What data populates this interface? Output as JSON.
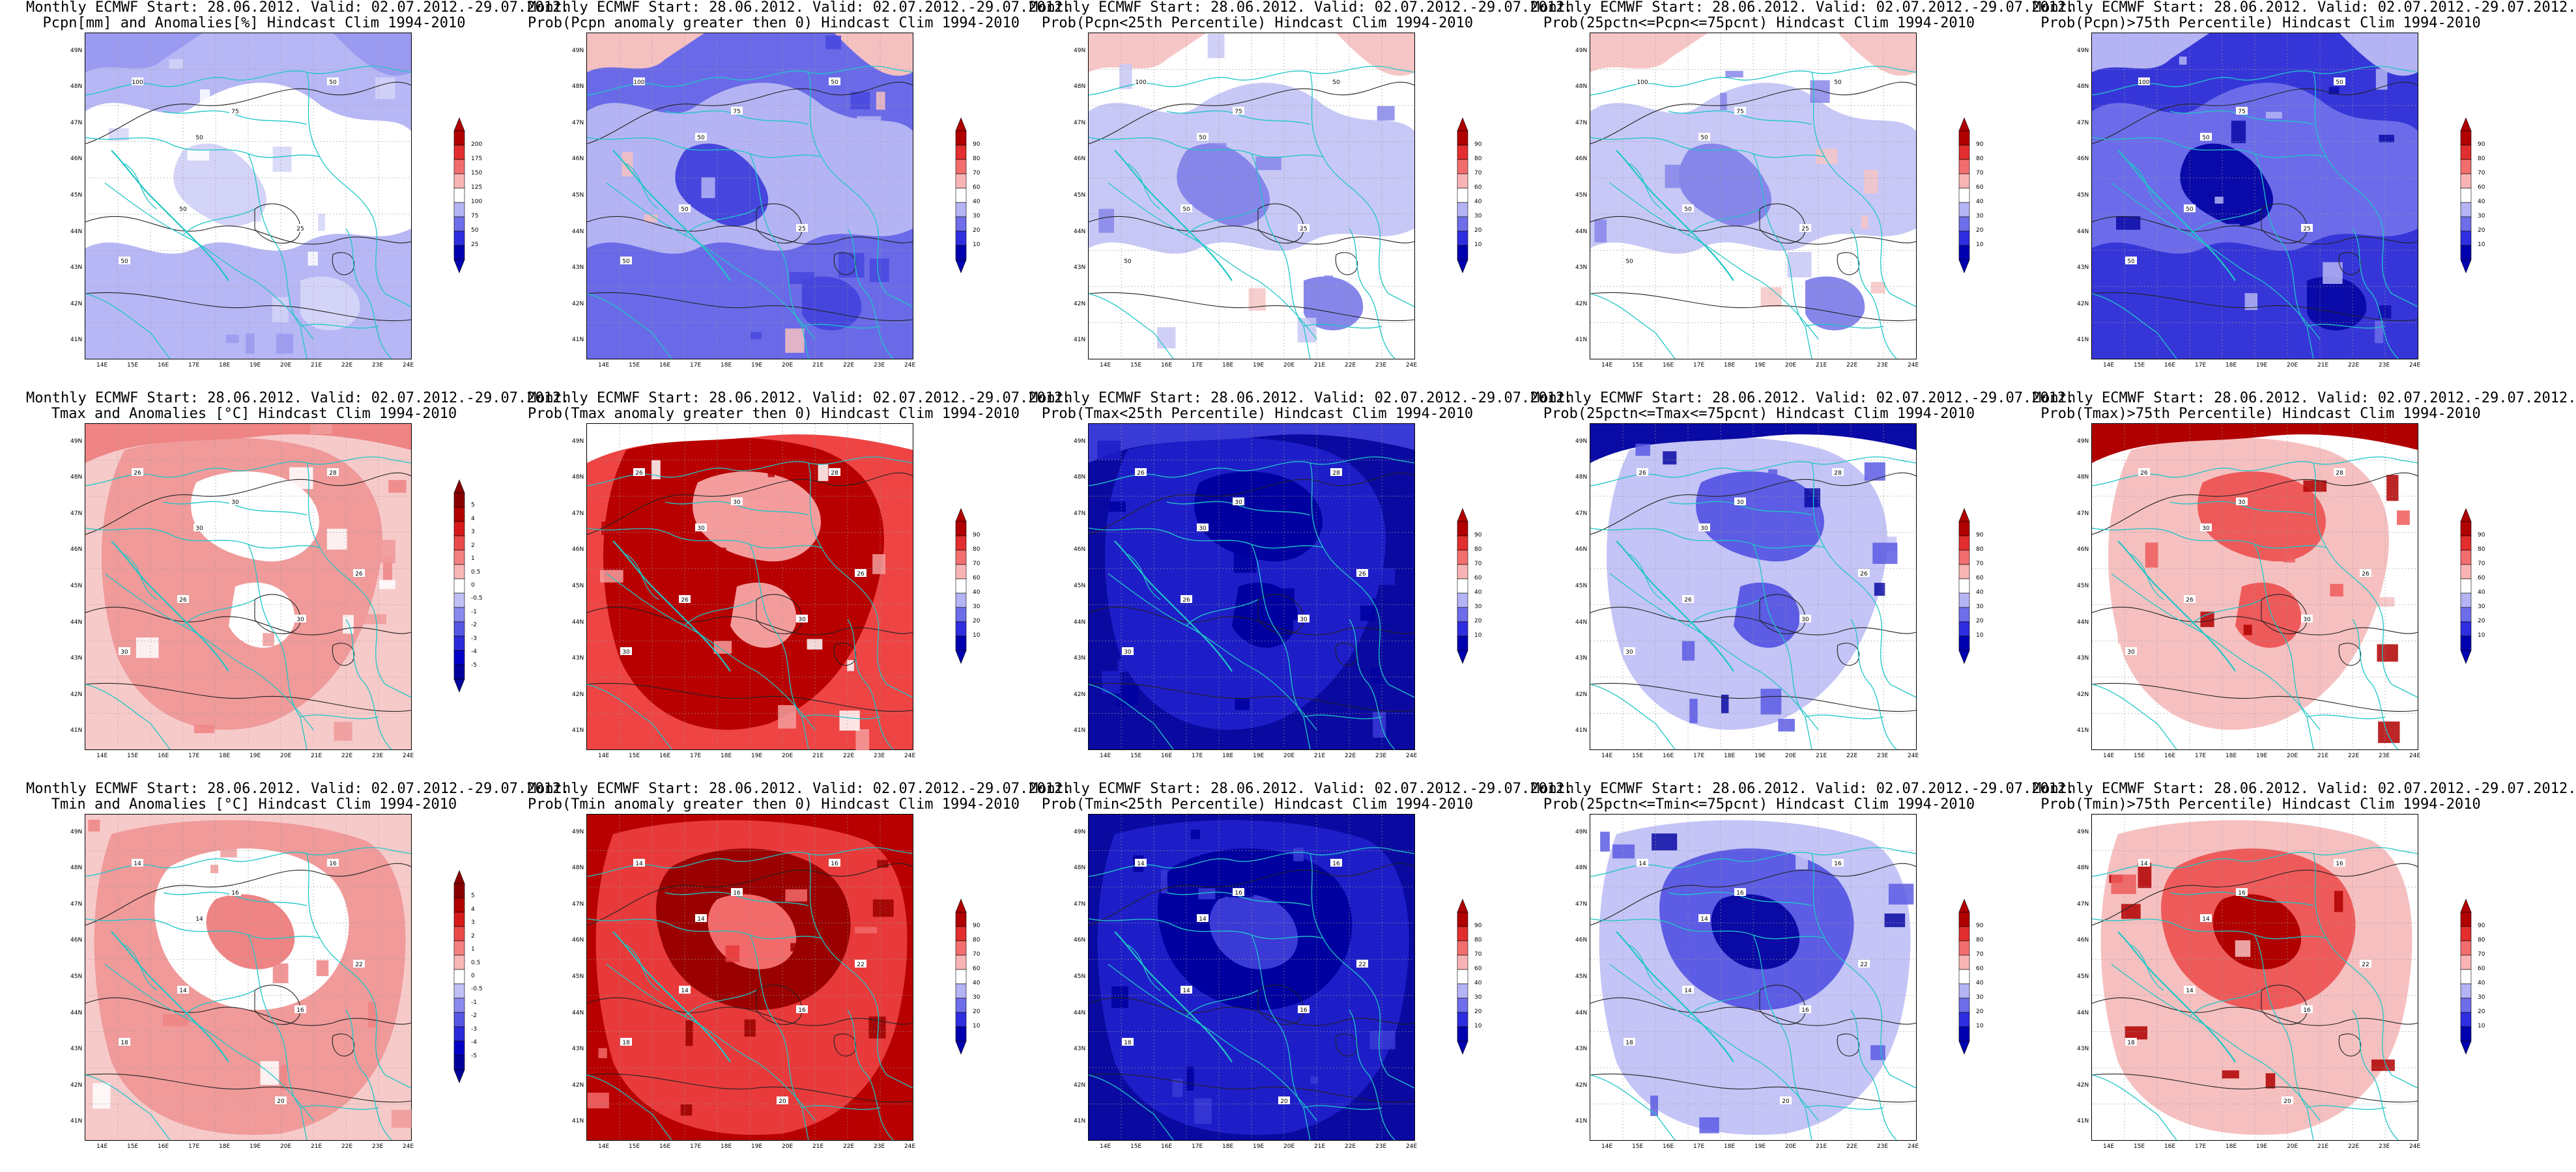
{
  "chart_data": [
    {
      "type": "heatmap",
      "row": 0,
      "col": 0,
      "variable": "pcpn",
      "palette": "pcpn",
      "title": [
        "Monthly ECMWF Start: 28.06.2012. Valid: 02.07.2012.-29.07.2012.",
        "Pcpn[mm] and Anomalies[%] Hindcast Clim 1994-2010"
      ],
      "colorbar_ticks": [
        "200",
        "175",
        "150",
        "125",
        "100",
        "75",
        "50",
        "25"
      ],
      "contour_labels": [
        "100",
        "50",
        "75",
        "50",
        "25",
        "50",
        "50"
      ]
    },
    {
      "type": "heatmap",
      "row": 0,
      "col": 1,
      "variable": "pcpn",
      "palette": "blue",
      "title": [
        "Monthly ECMWF Start: 28.06.2012. Valid: 02.07.2012.-29.07.2012.",
        "Prob(Pcpn anomaly greater then 0) Hindcast Clim 1994-2010"
      ],
      "colorbar_ticks": [
        "90",
        "80",
        "70",
        "60",
        "40",
        "30",
        "20",
        "10"
      ],
      "contour_labels": [
        "100",
        "50",
        "75",
        "50",
        "25",
        "50",
        "50"
      ]
    },
    {
      "type": "heatmap",
      "row": 0,
      "col": 2,
      "variable": "pcpn",
      "palette": "pale",
      "title": [
        "Monthly ECMWF Start: 28.06.2012. Valid: 02.07.2012.-29.07.2012.",
        "Prob(Pcpn<25th Percentile) Hindcast Clim 1994-2010"
      ],
      "colorbar_ticks": [
        "90",
        "80",
        "70",
        "60",
        "40",
        "30",
        "20",
        "10"
      ],
      "contour_labels": [
        "100",
        "50",
        "75",
        "50",
        "25",
        "50",
        "50"
      ]
    },
    {
      "type": "heatmap",
      "row": 0,
      "col": 3,
      "variable": "pcpn",
      "palette": "pale",
      "title": [
        "Monthly ECMWF Start: 28.06.2012. Valid: 02.07.2012.-29.07.2012.",
        "Prob(25pctn<=Pcpn<=75pcnt) Hindcast Clim 1994-2010"
      ],
      "colorbar_ticks": [
        "90",
        "80",
        "70",
        "60",
        "40",
        "30",
        "20",
        "10"
      ],
      "contour_labels": [
        "100",
        "50",
        "75",
        "50",
        "25",
        "50",
        "50"
      ]
    },
    {
      "type": "heatmap",
      "row": 0,
      "col": 4,
      "variable": "pcpn",
      "palette": "deepblue",
      "title": [
        "Monthly ECMWF Start: 28.06.2012. Valid: 02.07.2012.-29.07.2012.",
        "Prob(Pcpn)>75th Percentile) Hindcast Clim 1994-2010"
      ],
      "colorbar_ticks": [
        "90",
        "80",
        "70",
        "60",
        "40",
        "30",
        "20",
        "10"
      ],
      "contour_labels": [
        "100",
        "50",
        "75",
        "50",
        "25",
        "50",
        "50"
      ]
    },
    {
      "type": "heatmap",
      "row": 1,
      "col": 0,
      "variable": "tmax",
      "palette": "tanom",
      "title": [
        "Monthly ECMWF Start: 28.06.2012. Valid: 02.07.2012.-29.07.2012.",
        "Tmax and Anomalies [°C] Hindcast Clim 1994-2010"
      ],
      "colorbar_ticks": [
        "5",
        "4",
        "3",
        "2",
        "1",
        "0.5",
        "0",
        "-0.5",
        "-1",
        "-2",
        "-3",
        "-4",
        "-5"
      ],
      "contour_labels": [
        "26",
        "30",
        "30",
        "28",
        "30",
        "26",
        "30",
        "26"
      ]
    },
    {
      "type": "heatmap",
      "row": 1,
      "col": 1,
      "variable": "tmax",
      "palette": "redmax",
      "title": [
        "Monthly ECMWF Start: 28.06.2012. Valid: 02.07.2012.-29.07.2012.",
        "Prob(Tmax anomaly greater then 0) Hindcast Clim 1994-2010"
      ],
      "colorbar_ticks": [
        "90",
        "80",
        "70",
        "60",
        "40",
        "30",
        "20",
        "10"
      ],
      "contour_labels": [
        "26",
        "30",
        "30",
        "28",
        "30",
        "26",
        "30",
        "26"
      ]
    },
    {
      "type": "heatmap",
      "row": 1,
      "col": 2,
      "variable": "tmax",
      "palette": "navy",
      "title": [
        "Monthly ECMWF Start: 28.06.2012. Valid: 02.07.2012.-29.07.2012.",
        "Prob(Tmax<25th Percentile) Hindcast Clim 1994-2010"
      ],
      "colorbar_ticks": [
        "90",
        "80",
        "70",
        "60",
        "40",
        "30",
        "20",
        "10"
      ],
      "contour_labels": [
        "26",
        "30",
        "30",
        "28",
        "30",
        "26",
        "30",
        "26"
      ]
    },
    {
      "type": "heatmap",
      "row": 1,
      "col": 3,
      "variable": "tmax",
      "palette": "blueblob",
      "title": [
        "Monthly ECMWF Start: 28.06.2012. Valid: 02.07.2012.-29.07.2012.",
        "Prob(25pctn<=Tmax<=75pcnt) Hindcast Clim 1994-2010"
      ],
      "colorbar_ticks": [
        "90",
        "80",
        "70",
        "60",
        "40",
        "30",
        "20",
        "10"
      ],
      "contour_labels": [
        "26",
        "30",
        "30",
        "28",
        "30",
        "26",
        "30",
        "26"
      ]
    },
    {
      "type": "heatmap",
      "row": 1,
      "col": 4,
      "variable": "tmax",
      "palette": "redblob",
      "title": [
        "Monthly ECMWF Start: 28.06.2012. Valid: 02.07.2012.-29.07.2012.",
        "Prob(Tmax)>75th Percentile) Hindcast Clim 1994-2010"
      ],
      "colorbar_ticks": [
        "90",
        "80",
        "70",
        "60",
        "40",
        "30",
        "20",
        "10"
      ],
      "contour_labels": [
        "26",
        "30",
        "30",
        "28",
        "30",
        "26",
        "30",
        "26"
      ]
    },
    {
      "type": "heatmap",
      "row": 2,
      "col": 0,
      "variable": "tmin",
      "palette": "tanom",
      "title": [
        "Monthly ECMWF Start: 28.06.2012. Valid: 02.07.2012.-29.07.2012.",
        "Tmin and Anomalies [°C] Hindcast Clim 1994-2010"
      ],
      "colorbar_ticks": [
        "5",
        "4",
        "3",
        "2",
        "1",
        "0.5",
        "0",
        "-0.5",
        "-1",
        "-2",
        "-3",
        "-4",
        "-5"
      ],
      "contour_labels": [
        "14",
        "14",
        "16",
        "16",
        "16",
        "14",
        "18",
        "22",
        "20"
      ]
    },
    {
      "type": "heatmap",
      "row": 2,
      "col": 1,
      "variable": "tmin",
      "palette": "darkred",
      "title": [
        "Monthly ECMWF Start: 28.06.2012. Valid: 02.07.2012.-29.07.2012.",
        "Prob(Tmin anomaly greater then 0) Hindcast Clim 1994-2010"
      ],
      "colorbar_ticks": [
        "90",
        "80",
        "70",
        "60",
        "40",
        "30",
        "20",
        "10"
      ],
      "contour_labels": [
        "14",
        "14",
        "16",
        "16",
        "16",
        "14",
        "18",
        "22",
        "20"
      ]
    },
    {
      "type": "heatmap",
      "row": 2,
      "col": 2,
      "variable": "tmin",
      "palette": "navy",
      "title": [
        "Monthly ECMWF Start: 28.06.2012. Valid: 02.07.2012.-29.07.2012.",
        "Prob(Tmin<25th Percentile) Hindcast Clim 1994-2010"
      ],
      "colorbar_ticks": [
        "90",
        "80",
        "70",
        "60",
        "40",
        "30",
        "20",
        "10"
      ],
      "contour_labels": [
        "14",
        "14",
        "16",
        "16",
        "16",
        "14",
        "18",
        "22",
        "20"
      ]
    },
    {
      "type": "heatmap",
      "row": 2,
      "col": 3,
      "variable": "tmin",
      "palette": "blueblob",
      "title": [
        "Monthly ECMWF Start: 28.06.2012. Valid: 02.07.2012.-29.07.2012.",
        "Prob(25pctn<=Tmin<=75pcnt) Hindcast Clim 1994-2010"
      ],
      "colorbar_ticks": [
        "90",
        "80",
        "70",
        "60",
        "40",
        "30",
        "20",
        "10"
      ],
      "contour_labels": [
        "14",
        "14",
        "16",
        "16",
        "16",
        "14",
        "18",
        "22",
        "20"
      ]
    },
    {
      "type": "heatmap",
      "row": 2,
      "col": 4,
      "variable": "tmin",
      "palette": "redblob",
      "title": [
        "Monthly ECMWF Start: 28.06.2012. Valid: 02.07.2012.-29.07.2012.",
        "Prob(Tmin)>75th Percentile) Hindcast Clim 1994-2010"
      ],
      "colorbar_ticks": [
        "90",
        "80",
        "70",
        "60",
        "40",
        "30",
        "20",
        "10"
      ],
      "contour_labels": [
        "14",
        "14",
        "16",
        "16",
        "16",
        "14",
        "18",
        "22",
        "20"
      ]
    }
  ],
  "axes": {
    "lat_labels": [
      "49N",
      "48N",
      "47N",
      "46N",
      "45N",
      "44N",
      "43N",
      "42N",
      "41N"
    ],
    "lon_labels": [
      "14E",
      "15E",
      "16E",
      "17E",
      "18E",
      "19E",
      "20E",
      "21E",
      "22E",
      "23E",
      "24E"
    ]
  },
  "palettes": {
    "pcpn": {
      "bg": "#b7b7f5",
      "levels": [
        "#ffffff",
        "#d4d4f8",
        "#9a9af0"
      ]
    },
    "blue": {
      "bg": "#6a6ae8",
      "levels": [
        "#b4b4f4",
        "#4646de",
        "#f4c0c0"
      ]
    },
    "pale": {
      "bg": "#ffffff",
      "levels": [
        "#c8c8f6",
        "#8686ea",
        "#f6c6c6"
      ]
    },
    "deepblue": {
      "bg": "#3636d8",
      "levels": [
        "#6c6cea",
        "#0a0aa8",
        "#b4b4f4"
      ]
    },
    "tanom": {
      "bg": "#f7caca",
      "levels": [
        "#f09a9a",
        "#ffffff",
        "#ee8484"
      ]
    },
    "redmax": {
      "bg": "#ee4444",
      "levels": [
        "#b80000",
        "#f49c9c",
        "#ffffff"
      ]
    },
    "navy": {
      "bg": "#0a0aa0",
      "levels": [
        "#1e1ec8",
        "#0000a0",
        "#3a3ad6"
      ]
    },
    "blueblob": {
      "bg": "#ffffff",
      "levels": [
        "#c4c4f6",
        "#5c5ce4",
        "#0a0aa4"
      ]
    },
    "redblob": {
      "bg": "#ffffff",
      "levels": [
        "#f6c0c0",
        "#ee5a5a",
        "#b00000"
      ]
    },
    "darkred": {
      "bg": "#b80000",
      "levels": [
        "#e83a3a",
        "#9a0000",
        "#f26a6a"
      ]
    }
  },
  "colorbars": {
    "prob": [
      "#b00000",
      "#e22e2e",
      "#f26e6e",
      "#f8b4b4",
      "#ffffff",
      "#b4b4f4",
      "#6e6eea",
      "#2e2ee0",
      "#0000b0"
    ],
    "pcpn": [
      "#b00000",
      "#e22e2e",
      "#f26e6e",
      "#f8b4b4",
      "#ffffff",
      "#b4b4f4",
      "#6e6eea",
      "#2e2ee0",
      "#0000b0"
    ],
    "tanom": [
      "#8a0000",
      "#b00000",
      "#d61a1a",
      "#ea4a4a",
      "#f48080",
      "#f8b6b6",
      "#ffffff",
      "#c0c0f6",
      "#8a8aee",
      "#5656e4",
      "#2a2ada",
      "#0000c8",
      "#00009a"
    ]
  }
}
